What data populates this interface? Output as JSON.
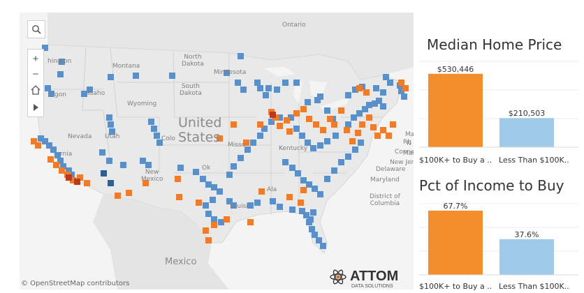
{
  "map": {
    "labels": {
      "ontario": "Ontario",
      "washington": "hington",
      "montana": "Montana",
      "north_dakota": "North\nDakota",
      "minnesota": "Minnesota",
      "south_dakota": "South\nDakota",
      "idaho": "Idaho",
      "oregon": "gon",
      "wyoming": "Wyoming",
      "nevada": "Nevada",
      "utah": "Utah",
      "colorado": "Colo",
      "california": "rnia",
      "united_states": "United\nStates",
      "missouri": "Misso",
      "kentucky": "Kentucky",
      "oklahoma": "Ok",
      "new_mexico": "New\nMexico",
      "alabama": "Ala",
      "louisiana": "Louisi",
      "mexico": "Mexico",
      "maine": "Ma",
      "new_hampshire": "N",
      "massachusetts": "Mas",
      "rhode_island": "Rh",
      "connecticut": "Conne",
      "new_jersey": "New Jer",
      "delaware": "Delaware",
      "maryland": "Maryland",
      "dc": "District of\nColumbia",
      "osm_credit": "© OpenStreetMap contributors"
    },
    "tools": {
      "search_icon": "search-icon",
      "zoom_in": "+",
      "zoom_out": "−",
      "home_icon": "home-icon",
      "play_icon": "play-icon"
    },
    "logo": {
      "name": "ATTOM",
      "tagline": "DATA SOLUTIONS"
    },
    "colors": {
      "water": "#f5f5f5",
      "land": "#ebebeb",
      "blue_marker": "#5b8fc7",
      "orange_marker": "#ee7c2a",
      "dark_blue_marker": "#2f5f90",
      "dark_red_marker": "#b83b1d"
    }
  },
  "panels": [
    {
      "title": "Median Home Price",
      "chart_data": {
        "type": "bar",
        "categories": [
          "$100K+ to Buy a ..",
          "Less Than $100K.."
        ],
        "values": [
          530446,
          210503
        ],
        "value_labels": [
          "$530,446",
          "$210,503"
        ],
        "colors": [
          "#f28e2b",
          "#a0cbe8"
        ],
        "ylim": [
          0,
          620000
        ]
      }
    },
    {
      "title": "Pct of Income to Buy",
      "chart_data": {
        "type": "bar",
        "categories": [
          "$100K+ to Buy a ..",
          "Less Than $100K.."
        ],
        "values": [
          67.7,
          37.6
        ],
        "value_labels": [
          "67.7%",
          "37.6%"
        ],
        "colors": [
          "#f28e2b",
          "#a0cbe8"
        ],
        "ylim": [
          0,
          75
        ]
      }
    }
  ]
}
